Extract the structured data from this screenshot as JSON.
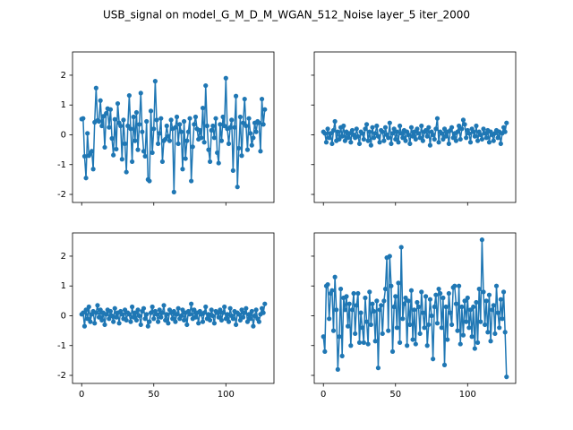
{
  "title": "USB_signal on model_G_M_D_M_WGAN_512_Noise layer_5 iter_2000",
  "chart_data": [
    {
      "type": "line",
      "color": "#1f77b4",
      "xlim": [
        -6.35,
        133.35
      ],
      "ylim": [
        -2.27,
        2.78
      ],
      "xticks": [
        0,
        50,
        100
      ],
      "yticks": [
        -2,
        -1,
        0,
        1,
        2
      ],
      "x": [
        0,
        1,
        2,
        3,
        4,
        5,
        6,
        7,
        8,
        9,
        10,
        11,
        12,
        13,
        14,
        15,
        16,
        17,
        18,
        19,
        20,
        21,
        22,
        23,
        24,
        25,
        26,
        27,
        28,
        29,
        30,
        31,
        32,
        33,
        34,
        35,
        36,
        37,
        38,
        39,
        40,
        41,
        42,
        43,
        44,
        45,
        46,
        47,
        48,
        49,
        50,
        51,
        52,
        53,
        54,
        55,
        56,
        57,
        58,
        59,
        60,
        61,
        62,
        63,
        64,
        65,
        66,
        67,
        68,
        69,
        70,
        71,
        72,
        73,
        74,
        75,
        76,
        77,
        78,
        79,
        80,
        81,
        82,
        83,
        84,
        85,
        86,
        87,
        88,
        89,
        90,
        91,
        92,
        93,
        94,
        95,
        96,
        97,
        98,
        99,
        100,
        101,
        102,
        103,
        104,
        105,
        106,
        107,
        108,
        109,
        110,
        111,
        112,
        113,
        114,
        115,
        116,
        117,
        118,
        119,
        120,
        121,
        122,
        123,
        124,
        125,
        126,
        127
      ],
      "values": [
        0.53,
        0.55,
        -0.72,
        -1.45,
        0.05,
        -0.7,
        -0.62,
        -0.55,
        -1.15,
        0.42,
        1.57,
        0.48,
        0.45,
        1.15,
        0.3,
        0.62,
        -0.42,
        0.72,
        0.88,
        0.25,
        0.85,
        -0.12,
        -0.68,
        0.52,
        -0.48,
        1.05,
        0.4,
        0.3,
        -0.82,
        0.5,
        -0.3,
        -1.25,
        0.3,
        1.32,
        0.2,
        -0.9,
        0.6,
        -0.2,
        0.75,
        -0.5,
        0.35,
        1.4,
        0.1,
        -0.55,
        -0.72,
        0.45,
        -1.5,
        -1.55,
        0.8,
        -0.6,
        0.2,
        1.8,
        0.5,
        -0.3,
        0.05,
        0.55,
        -0.9,
        -0.2,
        -0.15,
        0.3,
        -0.05,
        -0.2,
        0.5,
        0.2,
        -1.92,
        0.25,
        0.6,
        -0.3,
        0.35,
        0.1,
        -1.15,
        0.45,
        -0.8,
        -0.2,
        0.1,
        0.55,
        -1.55,
        -0.4,
        0.35,
        0.6,
        0.2,
        -0.15,
        0.15,
        -0.1,
        0.9,
        -0.25,
        1.65,
        0.3,
        -0.5,
        -0.9,
        0.15,
        0.3,
        -0.1,
        0.55,
        -0.6,
        -0.95,
        0.35,
        -0.2,
        0.6,
        0.3,
        1.9,
        0.2,
        -0.3,
        0.25,
        0.5,
        -1.2,
        0.25,
        1.3,
        -1.75,
        -0.45,
        0.6,
        -0.7,
        0.4,
        1.2,
        0.3,
        -0.5,
        0.55,
        0.05,
        -0.35,
        -0.1,
        0.4,
        0.1,
        0.45,
        0.4,
        -0.55,
        1.2,
        0.35,
        0.85
      ]
    },
    {
      "type": "line",
      "color": "#1f77b4",
      "xlim": [
        -6.35,
        133.35
      ],
      "ylim": [
        -2.27,
        2.78
      ],
      "xticks": [
        0,
        50,
        100
      ],
      "yticks": [
        -2,
        -1,
        0,
        1,
        2
      ],
      "x": [
        0,
        1,
        2,
        3,
        4,
        5,
        6,
        7,
        8,
        9,
        10,
        11,
        12,
        13,
        14,
        15,
        16,
        17,
        18,
        19,
        20,
        21,
        22,
        23,
        24,
        25,
        26,
        27,
        28,
        29,
        30,
        31,
        32,
        33,
        34,
        35,
        36,
        37,
        38,
        39,
        40,
        41,
        42,
        43,
        44,
        45,
        46,
        47,
        48,
        49,
        50,
        51,
        52,
        53,
        54,
        55,
        56,
        57,
        58,
        59,
        60,
        61,
        62,
        63,
        64,
        65,
        66,
        67,
        68,
        69,
        70,
        71,
        72,
        73,
        74,
        75,
        76,
        77,
        78,
        79,
        80,
        81,
        82,
        83,
        84,
        85,
        86,
        87,
        88,
        89,
        90,
        91,
        92,
        93,
        94,
        95,
        96,
        97,
        98,
        99,
        100,
        101,
        102,
        103,
        104,
        105,
        106,
        107,
        108,
        109,
        110,
        111,
        112,
        113,
        114,
        115,
        116,
        117,
        118,
        119,
        120,
        121,
        122,
        123,
        124,
        125,
        126,
        127
      ],
      "values": [
        0.1,
        0.05,
        -0.25,
        0.2,
        -0.1,
        0.05,
        -0.3,
        0.15,
        0.45,
        -0.2,
        0.1,
        -0.15,
        0.25,
        -0.05,
        0.3,
        -0.2,
        0.1,
        -0.1,
        0.05,
        -0.25,
        0.15,
        0.0,
        -0.1,
        0.2,
        -0.05,
        -0.3,
        0.1,
        0.05,
        -0.15,
        0.2,
        0.35,
        -0.2,
        0.1,
        -0.35,
        0.25,
        -0.1,
        0.05,
        0.3,
        -0.05,
        -0.25,
        0.15,
        0.1,
        -0.2,
        0.25,
        0.0,
        -0.1,
        0.4,
        -0.3,
        0.05,
        0.2,
        -0.15,
        0.1,
        -0.25,
        0.3,
        0.05,
        -0.1,
        0.15,
        -0.2,
        0.1,
        0.0,
        -0.3,
        0.25,
        -0.05,
        0.1,
        -0.15,
        0.2,
        0.05,
        -0.1,
        0.3,
        -0.2,
        0.1,
        0.15,
        -0.05,
        0.25,
        -0.35,
        0.1,
        0.0,
        -0.15,
        0.2,
        0.55,
        -0.25,
        0.1,
        0.05,
        -0.15,
        0.2,
        -0.05,
        0.1,
        -0.3,
        0.15,
        0.25,
        -0.1,
        0.05,
        -0.2,
        0.1,
        0.3,
        -0.15,
        0.2,
        0.5,
        0.35,
        -0.1,
        0.15,
        0.05,
        -0.25,
        0.2,
        0.1,
        -0.05,
        0.3,
        -0.2,
        0.1,
        0.0,
        -0.15,
        0.2,
        0.05,
        -0.1,
        0.15,
        -0.25,
        0.1,
        0.0,
        -0.2,
        0.05,
        0.15,
        -0.1,
        0.1,
        -0.3,
        0.05,
        0.25,
        0.1,
        0.4
      ]
    },
    {
      "type": "line",
      "color": "#1f77b4",
      "xlim": [
        -6.35,
        133.35
      ],
      "ylim": [
        -2.27,
        2.78
      ],
      "xticks": [
        0,
        50,
        100
      ],
      "yticks": [
        -2,
        -1,
        0,
        1,
        2
      ],
      "x": [
        0,
        1,
        2,
        3,
        4,
        5,
        6,
        7,
        8,
        9,
        10,
        11,
        12,
        13,
        14,
        15,
        16,
        17,
        18,
        19,
        20,
        21,
        22,
        23,
        24,
        25,
        26,
        27,
        28,
        29,
        30,
        31,
        32,
        33,
        34,
        35,
        36,
        37,
        38,
        39,
        40,
        41,
        42,
        43,
        44,
        45,
        46,
        47,
        48,
        49,
        50,
        51,
        52,
        53,
        54,
        55,
        56,
        57,
        58,
        59,
        60,
        61,
        62,
        63,
        64,
        65,
        66,
        67,
        68,
        69,
        70,
        71,
        72,
        73,
        74,
        75,
        76,
        77,
        78,
        79,
        80,
        81,
        82,
        83,
        84,
        85,
        86,
        87,
        88,
        89,
        90,
        91,
        92,
        93,
        94,
        95,
        96,
        97,
        98,
        99,
        100,
        101,
        102,
        103,
        104,
        105,
        106,
        107,
        108,
        109,
        110,
        111,
        112,
        113,
        114,
        115,
        116,
        117,
        118,
        119,
        120,
        121,
        122,
        123,
        124,
        125,
        126,
        127
      ],
      "values": [
        0.05,
        0.1,
        -0.35,
        0.2,
        -0.1,
        0.3,
        -0.2,
        0.05,
        0.15,
        -0.25,
        0.1,
        0.35,
        -0.05,
        0.2,
        -0.15,
        0.1,
        -0.3,
        0.05,
        0.2,
        -0.1,
        0.15,
        0.0,
        -0.2,
        0.25,
        -0.05,
        0.1,
        -0.25,
        0.15,
        0.05,
        -0.1,
        0.2,
        -0.15,
        0.1,
        0.05,
        -0.2,
        0.3,
        -0.05,
        0.1,
        -0.15,
        0.2,
        0.0,
        -0.3,
        0.15,
        0.25,
        -0.1,
        0.05,
        -0.35,
        -0.2,
        0.1,
        0.3,
        -0.1,
        0.15,
        0.05,
        -0.2,
        0.2,
        -0.05,
        0.1,
        0.35,
        -0.15,
        0.05,
        -0.25,
        0.2,
        0.1,
        -0.1,
        0.15,
        -0.2,
        0.05,
        0.25,
        -0.1,
        0.0,
        0.2,
        -0.15,
        0.1,
        -0.3,
        0.15,
        0.05,
        0.4,
        -0.1,
        0.2,
        -0.05,
        0.1,
        -0.25,
        0.15,
        0.05,
        -0.2,
        0.1,
        0.3,
        -0.1,
        0.05,
        -0.15,
        0.2,
        0.0,
        -0.25,
        0.15,
        0.1,
        -0.05,
        0.2,
        -0.15,
        0.1,
        0.3,
        -0.1,
        0.05,
        -0.2,
        0.25,
        0.0,
        -0.1,
        0.15,
        -0.3,
        0.1,
        0.05,
        -0.15,
        0.2,
        -0.05,
        0.1,
        0.25,
        -0.2,
        0.05,
        -0.1,
        0.15,
        -0.35,
        0.0,
        0.2,
        -0.1,
        -0.2,
        0.05,
        0.25,
        0.1,
        0.4
      ]
    },
    {
      "type": "line",
      "color": "#1f77b4",
      "xlim": [
        -6.35,
        133.35
      ],
      "ylim": [
        -2.27,
        2.78
      ],
      "xticks": [
        0,
        50,
        100
      ],
      "yticks": [
        -2,
        -1,
        0,
        1,
        2
      ],
      "x": [
        0,
        1,
        2,
        3,
        4,
        5,
        6,
        7,
        8,
        9,
        10,
        11,
        12,
        13,
        14,
        15,
        16,
        17,
        18,
        19,
        20,
        21,
        22,
        23,
        24,
        25,
        26,
        27,
        28,
        29,
        30,
        31,
        32,
        33,
        34,
        35,
        36,
        37,
        38,
        39,
        40,
        41,
        42,
        43,
        44,
        45,
        46,
        47,
        48,
        49,
        50,
        51,
        52,
        53,
        54,
        55,
        56,
        57,
        58,
        59,
        60,
        61,
        62,
        63,
        64,
        65,
        66,
        67,
        68,
        69,
        70,
        71,
        72,
        73,
        74,
        75,
        76,
        77,
        78,
        79,
        80,
        81,
        82,
        83,
        84,
        85,
        86,
        87,
        88,
        89,
        90,
        91,
        92,
        93,
        94,
        95,
        96,
        97,
        98,
        99,
        100,
        101,
        102,
        103,
        104,
        105,
        106,
        107,
        108,
        109,
        110,
        111,
        112,
        113,
        114,
        115,
        116,
        117,
        118,
        119,
        120,
        121,
        122,
        123,
        124,
        125,
        126,
        127
      ],
      "values": [
        -0.7,
        -1.2,
        1.0,
        1.05,
        -0.1,
        0.75,
        0.85,
        -0.5,
        1.3,
        0.2,
        -1.8,
        -0.7,
        0.9,
        -1.35,
        0.6,
        0.2,
        0.65,
        -0.35,
        0.4,
        -1.0,
        0.2,
        0.75,
        -0.6,
        0.35,
        0.75,
        -0.9,
        0.1,
        -0.4,
        -0.9,
        0.6,
        -0.2,
        -0.95,
        0.8,
        -0.3,
        0.4,
        0.15,
        -0.85,
        0.5,
        -1.75,
        0.2,
        0.35,
        -0.6,
        0.5,
        0.9,
        1.95,
        -0.5,
        2.0,
        1.0,
        -1.2,
        0.3,
        0.65,
        -0.4,
        1.1,
        -0.9,
        2.3,
        -0.1,
        0.4,
        0.6,
        -1.0,
        0.5,
        -0.3,
        0.85,
        -0.8,
        0.2,
        -0.95,
        0.45,
        0.3,
        -0.6,
        0.8,
        0.1,
        -0.4,
        0.65,
        -1.0,
        -0.3,
        0.55,
        0.0,
        -1.45,
        0.3,
        0.7,
        -0.25,
        0.9,
        0.75,
        -0.4,
        0.6,
        -1.65,
        0.3,
        -0.8,
        0.75,
        0.1,
        -0.3,
        0.95,
        1.0,
        0.4,
        -0.5,
        1.0,
        -0.95,
        0.3,
        -0.65,
        0.5,
        -0.2,
        0.6,
        -0.4,
        0.2,
        -0.7,
        0.3,
        -1.1,
        0.45,
        -0.9,
        0.9,
        -0.2,
        2.55,
        0.8,
        -0.3,
        0.5,
        -0.55,
        0.7,
        -0.85,
        0.2,
        0.35,
        -0.6,
        1.0,
        0.1,
        -0.4,
        0.55,
        -0.1,
        0.8,
        -0.55,
        -2.05
      ]
    }
  ]
}
